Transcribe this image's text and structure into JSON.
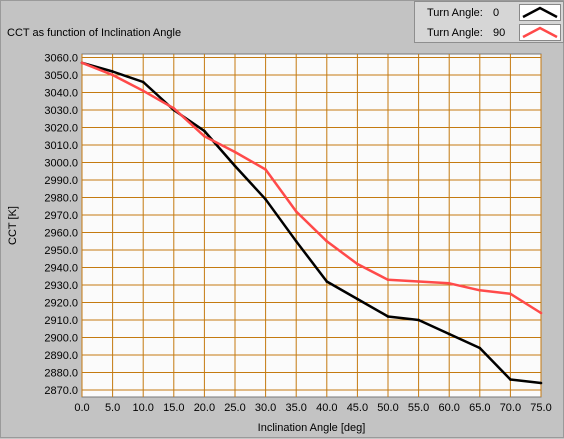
{
  "chart_data": {
    "type": "line",
    "title": "CCT as function of Inclination Angle",
    "xlabel": "Inclination Angle [deg]",
    "ylabel": "CCT [K]",
    "xlim": [
      0,
      75
    ],
    "ylim": [
      2866,
      3062
    ],
    "grid": true,
    "legend_position": "top-right",
    "x_ticks": [
      "0.0",
      "5.0",
      "10.0",
      "15.0",
      "20.0",
      "25.0",
      "30.0",
      "35.0",
      "40.0",
      "45.0",
      "50.0",
      "55.0",
      "60.0",
      "65.0",
      "70.0",
      "75.0"
    ],
    "y_ticks": [
      "3060.0",
      "3050.0",
      "3040.0",
      "3030.0",
      "3020.0",
      "3010.0",
      "3000.0",
      "2990.0",
      "2980.0",
      "2970.0",
      "2960.0",
      "2950.0",
      "2940.0",
      "2930.0",
      "2920.0",
      "2910.0",
      "2900.0",
      "2890.0",
      "2880.0",
      "2870.0"
    ],
    "x": [
      0,
      5,
      10,
      15,
      20,
      25,
      30,
      35,
      40,
      45,
      50,
      55,
      60,
      65,
      70,
      75
    ],
    "series": [
      {
        "label": "Turn Angle:",
        "value_label": "0",
        "color": "#000000",
        "values": [
          3057,
          3052,
          3046,
          3030,
          3018,
          2998,
          2979,
          2955,
          2932,
          2922,
          2912,
          2910,
          2902,
          2894,
          2876,
          2874
        ]
      },
      {
        "label": "Turn Angle:",
        "value_label": "90",
        "color": "#ff4a4a",
        "values": [
          3057,
          3050,
          3041,
          3031,
          3015,
          3006,
          2996,
          2972,
          2955,
          2942,
          2933,
          2932,
          2931,
          2927,
          2925,
          2914
        ]
      }
    ]
  },
  "colors": {
    "plot_background": "#fbfbfb",
    "grid": "#c47a10",
    "panel": "#c3c3c3"
  }
}
